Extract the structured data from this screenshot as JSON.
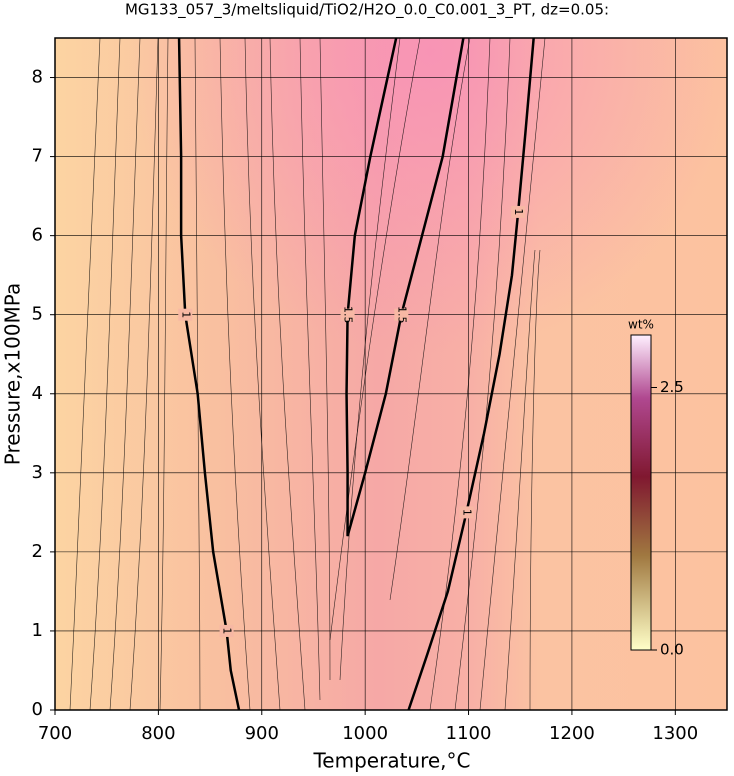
{
  "chart_data": {
    "type": "contour",
    "title": "MG133_057_3/meltsliquid/TiO2/H2O_0.0_C0.001_3_PT, dz=0.05:",
    "x_label": "Temperature,°C",
    "y_label": "Pressure,x100MPa",
    "xlim": [
      700,
      1350
    ],
    "ylim": [
      0,
      8.5
    ],
    "xticks": [
      700,
      800,
      900,
      1000,
      1100,
      1200,
      1300
    ],
    "yticks": [
      0,
      1,
      2,
      3,
      4,
      5,
      6,
      7,
      8
    ],
    "grid": true,
    "contours": [
      {
        "level": 1,
        "label": "1",
        "x": [
          820,
          822,
          822,
          826,
          838,
          845,
          853,
          866,
          870,
          878
        ],
        "y": [
          8.5,
          7,
          6,
          5,
          4,
          3,
          2,
          1,
          0.5,
          0
        ]
      },
      {
        "level": 1,
        "label": "1",
        "x": [
          1042,
          1060,
          1080,
          1098,
          1115,
          1130,
          1142,
          1148,
          1155,
          1163
        ],
        "y": [
          0,
          0.7,
          1.5,
          2.5,
          3.5,
          4.5,
          5.5,
          6.3,
          7.3,
          8.5
        ]
      },
      {
        "level": 1.5,
        "label": "1.5",
        "x": [
          1030,
          1005,
          990,
          983,
          982,
          983,
          983,
          1000,
          1020,
          1035,
          1055,
          1075,
          1095
        ],
        "y": [
          8.5,
          7,
          6,
          5,
          4,
          3,
          2.2,
          3,
          4,
          5,
          6,
          7,
          8.5
        ]
      }
    ],
    "colorbar": {
      "label": "wt%",
      "clim": [
        0,
        3.0
      ],
      "ticks": [
        {
          "value": 0,
          "label": "0.0"
        },
        {
          "value": 2.5,
          "label": "2.5"
        }
      ]
    }
  }
}
